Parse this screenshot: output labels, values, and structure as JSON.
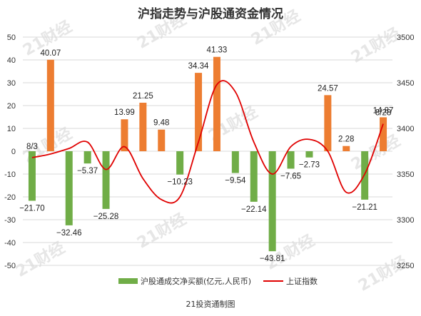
{
  "chart_data": {
    "type": "bar",
    "title": "沪指走势与沪股通资金情况",
    "xlabel": "",
    "ylabel": "",
    "ylim": [
      -50,
      50
    ],
    "y2lim": [
      3250,
      3500
    ],
    "yticks": [
      "50",
      "40",
      "30",
      "20",
      "10",
      "0",
      "-10",
      "-20",
      "-30",
      "-40",
      "-50"
    ],
    "y2ticks": [
      "3500",
      "3450",
      "3400",
      "3350",
      "3300",
      "3250"
    ],
    "grid": true,
    "legend_position": "bottom",
    "series": [
      {
        "name": "沪股通成交净买额(亿元,人民币)",
        "type": "bar",
        "axis": "left",
        "color_positive": "#ED7D31",
        "color_negative": "#70AD47",
        "values": [
          -21.7,
          40.07,
          -32.46,
          -5.37,
          -25.28,
          13.99,
          21.25,
          9.48,
          -10.23,
          34.34,
          41.33,
          -9.54,
          -22.14,
          -43.81,
          -7.65,
          -2.73,
          24.57,
          2.28,
          -21.21,
          14.87
        ],
        "labels": [
          "−21.70",
          "40.07",
          "−32.46",
          "−5.37",
          "−25.28",
          "13.99",
          "21.25",
          "9.48",
          "−10.23",
          "34.34",
          "41.33",
          "−9.54",
          "−22.14",
          "−43.81",
          "−7.65",
          "−2.73",
          "24.57",
          "2.28",
          "−21.21",
          "14.87"
        ]
      },
      {
        "name": "上证指数",
        "type": "line",
        "axis": "right",
        "color": "#E00000",
        "values": [
          3368,
          3372,
          3378,
          3385,
          3355,
          3380,
          3345,
          3322,
          3325,
          3385,
          3448,
          3440,
          3385,
          3350,
          3380,
          3388,
          3375,
          3330,
          3350,
          3405
        ]
      }
    ],
    "annotations": [
      {
        "text": "8/3",
        "index": 0
      },
      {
        "text": "8/28",
        "index": 19
      }
    ]
  },
  "credit": "21投资通制图",
  "watermark": "21财经"
}
